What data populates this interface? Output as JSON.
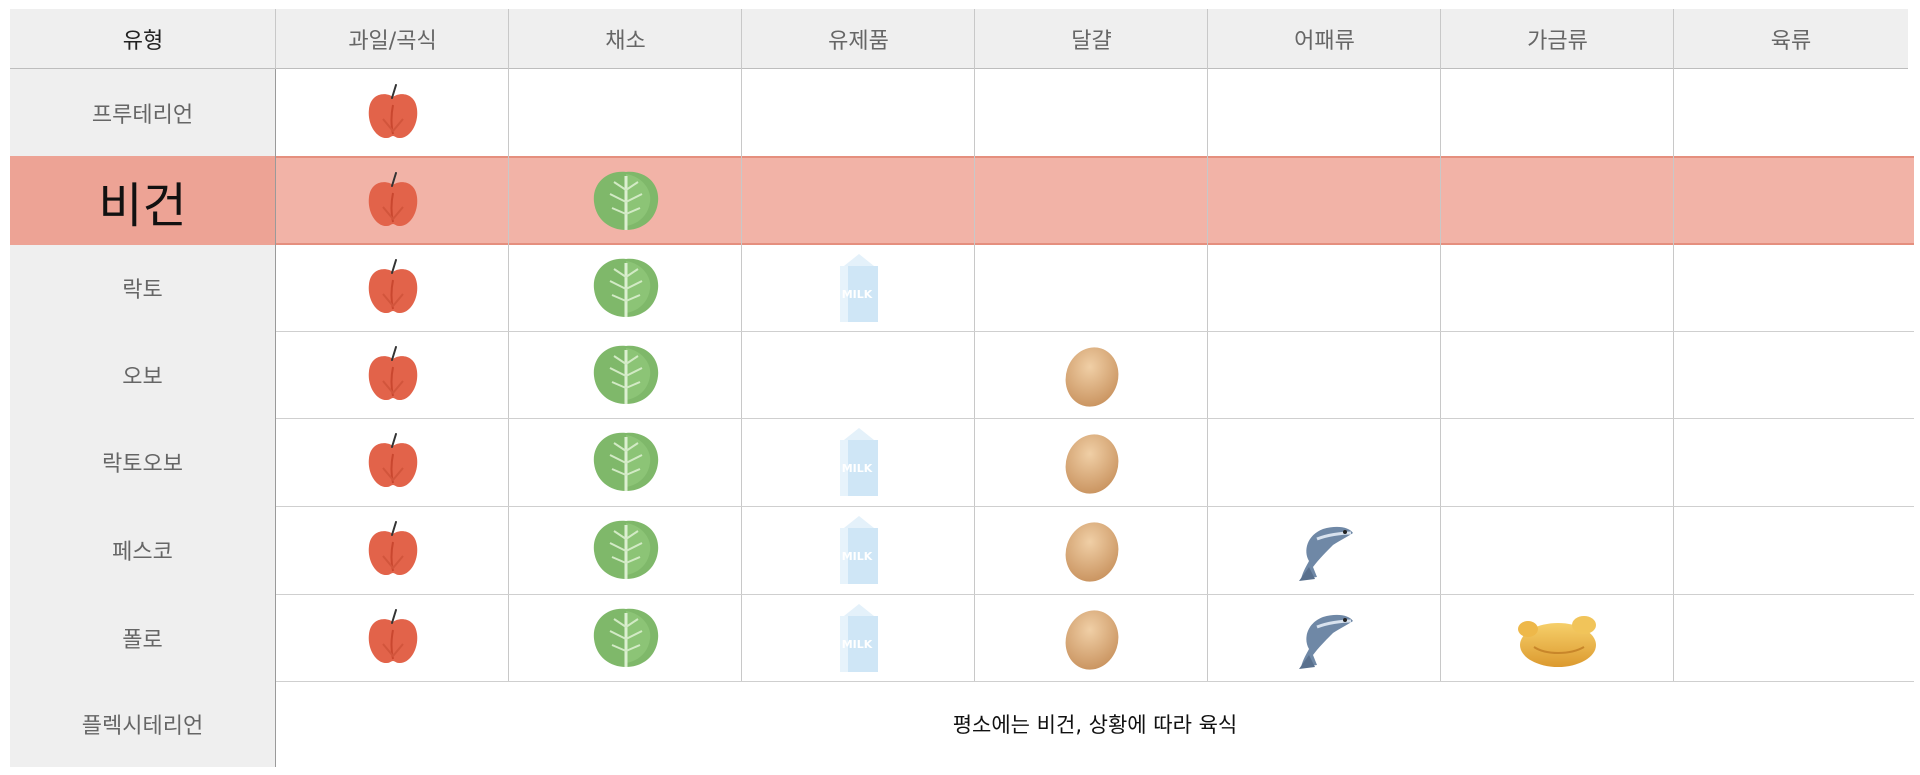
{
  "headers": [
    "유형",
    "과일/곡식",
    "채소",
    "유제품",
    "달걀",
    "어패류",
    "가금류",
    "육류"
  ],
  "rows": [
    {
      "label": "프루테리언",
      "items": [
        "apple-icon"
      ]
    },
    {
      "label": "비건",
      "items": [
        "apple-icon",
        "cabbage-icon"
      ],
      "highlight": true
    },
    {
      "label": "락토",
      "items": [
        "apple-icon",
        "cabbage-icon",
        "milk-carton-icon"
      ]
    },
    {
      "label": "오보",
      "items": [
        "apple-icon",
        "cabbage-icon",
        "",
        "egg-icon"
      ]
    },
    {
      "label": "락토오보",
      "items": [
        "apple-icon",
        "cabbage-icon",
        "milk-carton-icon",
        "egg-icon"
      ]
    },
    {
      "label": "페스코",
      "items": [
        "apple-icon",
        "cabbage-icon",
        "milk-carton-icon",
        "egg-icon",
        "fish-icon"
      ]
    },
    {
      "label": "폴로",
      "items": [
        "apple-icon",
        "cabbage-icon",
        "milk-carton-icon",
        "egg-icon",
        "fish-icon",
        "chicken-icon"
      ]
    },
    {
      "label": "플렉시테리언",
      "note": "평소에는 비건, 상황에 따라 육식"
    }
  ],
  "milk_text": "MILK",
  "colors": {
    "highlight": "#f2b3a7",
    "header_bg": "#efefef",
    "apple": "#e2634a",
    "cabbage": "#7fb86a",
    "egg": "#d9a97a",
    "milk": "#cfe6f6",
    "fish": "#6f88a6",
    "chicken": "#edb94f"
  }
}
